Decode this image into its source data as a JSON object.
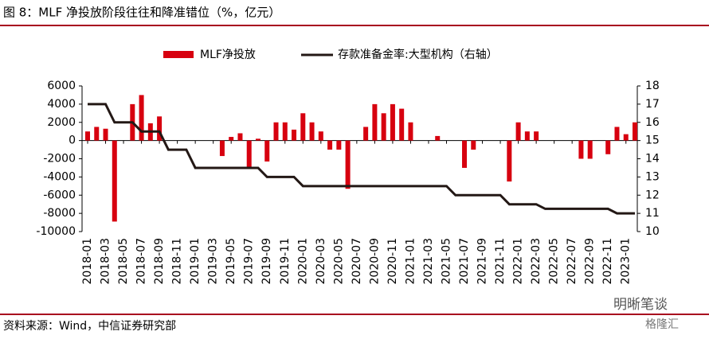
{
  "chart_data": {
    "type": "bar_line",
    "title": "图 8：MLF 净投放阶段往往和降准错位（%，亿元）",
    "source": "资料来源：Wind，中信证券研究部",
    "watermarks": [
      "明晰笔谈",
      "格隆汇"
    ],
    "categories": [
      "2018-01",
      null,
      "2018-03",
      null,
      "2018-05",
      null,
      "2018-07",
      null,
      "2018-09",
      null,
      "2018-11",
      null,
      "2019-01",
      null,
      "2019-03",
      null,
      "2019-05",
      null,
      "2019-07",
      null,
      "2019-09",
      null,
      "2019-11",
      null,
      "2020-01",
      null,
      "2020-03",
      null,
      "2020-05",
      null,
      "2020-07",
      null,
      "2020-09",
      null,
      "2020-11",
      null,
      "2021-01",
      null,
      "2021-03",
      null,
      "2021-05",
      null,
      "2021-07",
      null,
      "2021-09",
      null,
      "2021-11",
      null,
      "2022-01",
      null,
      "2022-03",
      null,
      "2022-05",
      null,
      "2022-07",
      null,
      "2022-09",
      null,
      "2022-11",
      null,
      "2023-01",
      null
    ],
    "series": [
      {
        "name": "MLF净投放",
        "type": "bar",
        "color": "#d7000f",
        "values": [
          1000,
          1500,
          1300,
          -8900,
          0,
          4000,
          5000,
          1900,
          2650,
          0,
          0,
          0,
          0,
          0,
          0,
          -1700,
          400,
          800,
          -3000,
          200,
          -2300,
          2000,
          2000,
          1200,
          3000,
          2000,
          1000,
          -1000,
          -1000,
          -5300,
          0,
          1500,
          4000,
          3000,
          4000,
          3500,
          2000,
          0,
          0,
          500,
          0,
          0,
          -3000,
          -1000,
          0,
          0,
          0,
          -4500,
          2000,
          1000,
          1000,
          0,
          0,
          0,
          0,
          -2000,
          -2000,
          0,
          -1500,
          1500,
          700,
          2000
        ]
      },
      {
        "name": "存款准备金率:大型机构（右轴）",
        "type": "line",
        "axis": "y2",
        "color": "#231815",
        "values": [
          17,
          17,
          17,
          16,
          16,
          16,
          15.5,
          15.5,
          15.5,
          14.5,
          14.5,
          14.5,
          13.5,
          13.5,
          13.5,
          13.5,
          13.5,
          13.5,
          13.5,
          13.5,
          13,
          13,
          13,
          13,
          12.5,
          12.5,
          12.5,
          12.5,
          12.5,
          12.5,
          12.5,
          12.5,
          12.5,
          12.5,
          12.5,
          12.5,
          12.5,
          12.5,
          12.5,
          12.5,
          12.5,
          12,
          12,
          12,
          12,
          12,
          12,
          11.5,
          11.5,
          11.5,
          11.5,
          11.25,
          11.25,
          11.25,
          11.25,
          11.25,
          11.25,
          11.25,
          11.25,
          11,
          11,
          11
        ]
      }
    ],
    "ylim": [
      -10000,
      6000
    ],
    "yticks": [
      6000,
      4000,
      2000,
      0,
      -2000,
      -4000,
      -6000,
      -8000,
      -10000
    ],
    "y2lim": [
      10,
      18
    ],
    "y2ticks": [
      18,
      17,
      16,
      15,
      14,
      13,
      12,
      11,
      10
    ]
  }
}
